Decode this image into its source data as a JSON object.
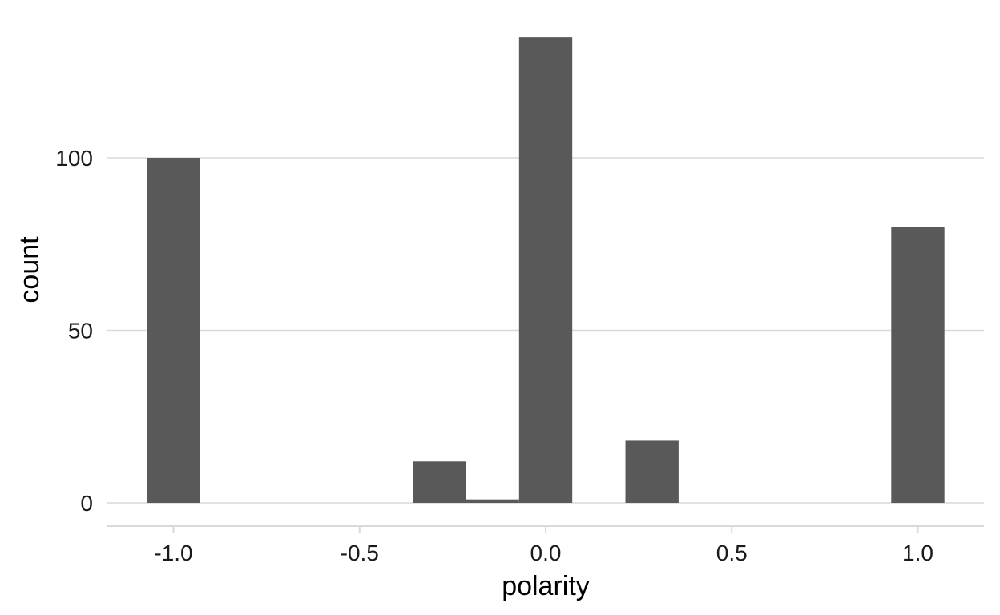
{
  "chart_data": {
    "type": "bar",
    "title": "",
    "xlabel": "polarity",
    "ylabel": "count",
    "xlim": [
      -1.2,
      1.2
    ],
    "ylim": [
      0,
      135
    ],
    "x_ticks": [
      -1.0,
      -0.5,
      0.0,
      0.5,
      1.0
    ],
    "x_tick_labels": [
      "-1.0",
      "-0.5",
      "0.0",
      "0.5",
      "1.0"
    ],
    "y_ticks": [
      0,
      50,
      100
    ],
    "y_tick_labels": [
      "0",
      "50",
      "100"
    ],
    "bin_width": 0.1429,
    "bins": [
      {
        "x": -1.0,
        "count": 100
      },
      {
        "x": -0.2857,
        "count": 12
      },
      {
        "x": -0.1429,
        "count": 1
      },
      {
        "x": 0.0,
        "count": 135
      },
      {
        "x": 0.2857,
        "count": 18
      },
      {
        "x": 1.0,
        "count": 80
      }
    ],
    "grid": "horizontal",
    "bar_color": "#595959",
    "grid_color": "#d9d9d9",
    "legend": "none"
  }
}
